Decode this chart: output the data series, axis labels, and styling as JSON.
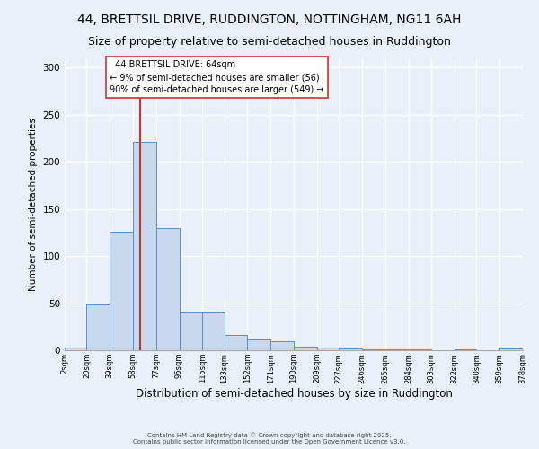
{
  "title": "44, BRETTSIL DRIVE, RUDDINGTON, NOTTINGHAM, NG11 6AH",
  "subtitle": "Size of property relative to semi-detached houses in Ruddington",
  "xlabel": "Distribution of semi-detached houses by size in Ruddington",
  "ylabel": "Number of semi-detached properties",
  "property_size": 64,
  "property_label": "44 BRETTSIL DRIVE: 64sqm",
  "smaller_pct": 9,
  "smaller_n": 56,
  "larger_pct": 90,
  "larger_n": 549,
  "bin_edges": [
    2,
    20,
    39,
    58,
    77,
    96,
    115,
    133,
    152,
    171,
    190,
    209,
    227,
    246,
    265,
    284,
    303,
    322,
    340,
    359,
    378
  ],
  "bin_labels": [
    "2sqm",
    "20sqm",
    "39sqm",
    "58sqm",
    "77sqm",
    "96sqm",
    "115sqm",
    "133sqm",
    "152sqm",
    "171sqm",
    "190sqm",
    "209sqm",
    "227sqm",
    "246sqm",
    "265sqm",
    "284sqm",
    "303sqm",
    "322sqm",
    "340sqm",
    "359sqm",
    "378sqm"
  ],
  "counts": [
    3,
    49,
    126,
    221,
    130,
    41,
    41,
    16,
    11,
    10,
    4,
    3,
    2,
    1,
    1,
    1,
    0,
    1,
    0,
    2
  ],
  "bar_color": "#c9d9ed",
  "bar_edge_color": "#5b8ec4",
  "red_line_color": "#c0392b",
  "background_color": "#eaf0f9",
  "grid_color": "#ffffff",
  "annotation_box_color": "#ffffff",
  "annotation_box_edge": "#c0392b",
  "footer_line1": "Contains HM Land Registry data © Crown copyright and database right 2025.",
  "footer_line2": "Contains public sector information licensed under the Open Government Licence v3.0.",
  "ylim": [
    0,
    310
  ],
  "title_fontsize": 10,
  "subtitle_fontsize": 9
}
